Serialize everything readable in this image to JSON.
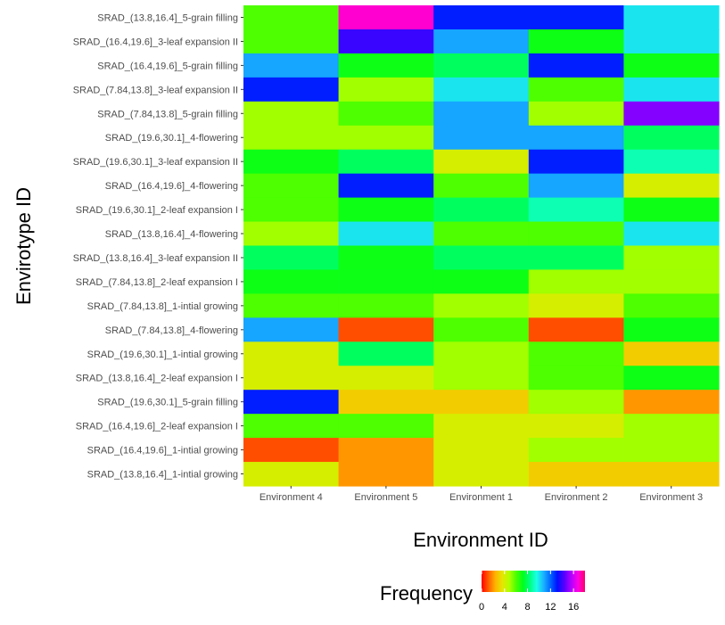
{
  "chart_data": {
    "type": "heatmap",
    "title": "",
    "xlabel": "Environment ID",
    "ylabel": "Envirotype ID",
    "x_categories": [
      "Environment 4",
      "Environment 5",
      "Environment 1",
      "Environment 2",
      "Environment 3"
    ],
    "y_categories": [
      "SRAD_(13.8,16.4]_5-grain filling",
      "SRAD_(16.4,19.6]_3-leaf expansion II",
      "SRAD_(16.4,19.6]_5-grain filling",
      "SRAD_(7.84,13.8]_3-leaf expansion II",
      "SRAD_(7.84,13.8]_5-grain filling",
      "SRAD_(19.6,30.1]_4-flowering",
      "SRAD_(19.6,30.1]_3-leaf expansion II",
      "SRAD_(16.4,19.6]_4-flowering",
      "SRAD_(19.6,30.1]_2-leaf expansion I",
      "SRAD_(13.8,16.4]_4-flowering",
      "SRAD_(13.8,16.4]_3-leaf expansion II",
      "SRAD_(7.84,13.8]_2-leaf expansion I",
      "SRAD_(7.84,13.8]_1-intial growing",
      "SRAD_(7.84,13.8]_4-flowering",
      "SRAD_(19.6,30.1]_1-intial growing",
      "SRAD_(13.8,16.4]_2-leaf expansion I",
      "SRAD_(19.6,30.1]_5-grain filling",
      "SRAD_(16.4,19.6]_2-leaf expansion I",
      "SRAD_(16.4,19.6]_1-intial growing",
      "SRAD_(13.8,16.4]_1-intial growing"
    ],
    "values": [
      [
        6,
        17,
        13,
        13,
        10
      ],
      [
        6,
        14,
        11,
        7,
        10
      ],
      [
        11,
        7,
        8,
        13,
        7
      ],
      [
        13,
        5,
        10,
        6,
        10
      ],
      [
        5,
        6,
        11,
        5,
        15
      ],
      [
        5,
        5,
        11,
        11,
        8
      ],
      [
        7,
        8,
        4,
        13,
        9
      ],
      [
        6,
        13,
        6,
        11,
        4
      ],
      [
        6,
        7,
        8,
        9,
        7
      ],
      [
        5,
        10,
        6,
        6,
        10
      ],
      [
        8,
        7,
        8,
        8,
        5
      ],
      [
        7,
        7,
        7,
        5,
        5
      ],
      [
        6,
        6,
        5,
        4,
        6
      ],
      [
        11,
        1,
        6,
        1,
        7
      ],
      [
        4,
        8,
        5,
        6,
        3
      ],
      [
        4,
        4,
        5,
        6,
        7
      ],
      [
        13,
        3,
        3,
        5,
        2
      ],
      [
        6,
        6,
        4,
        4,
        5
      ],
      [
        1,
        2,
        4,
        5,
        5
      ],
      [
        4,
        2,
        4,
        3,
        3
      ]
    ],
    "legend": {
      "title": "Frequency",
      "ticks": [
        "0",
        "4",
        "8",
        "12",
        "16"
      ],
      "min": 0,
      "max": 18,
      "colors": [
        "#FF0000",
        "#FF5E00",
        "#FFB200",
        "#E6E600",
        "#B2FF00",
        "#4DFF00",
        "#00FF1A",
        "#00FF80",
        "#1AFFE6",
        "#1AB2FF",
        "#0066FF",
        "#0010FF",
        "#5500FF",
        "#B200FF",
        "#FF00E6",
        "#FF0066"
      ],
      "position": "bottom"
    },
    "grid": false
  }
}
